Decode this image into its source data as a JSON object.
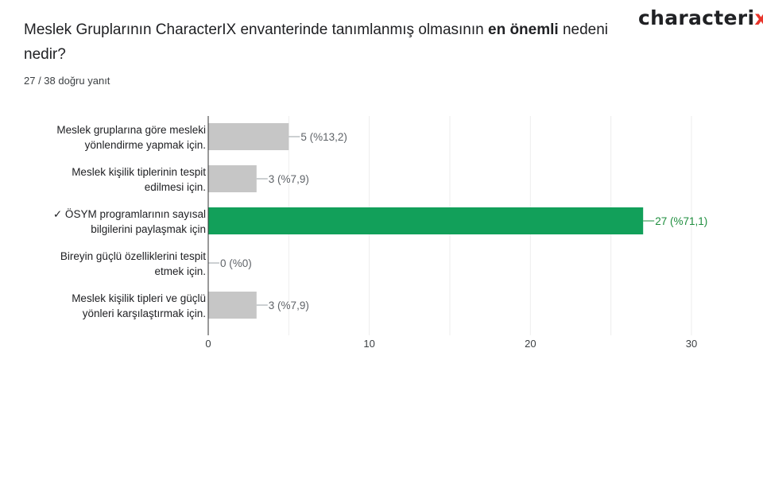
{
  "question": {
    "text_before": "Meslek Gruplarının CharacterIX envanterinde tanımlanmış olmasının ",
    "text_bold": "en önemli",
    "text_after": " nedeni nedir?"
  },
  "score_text": "27 / 38 doğru yanıt",
  "logo": {
    "main": "characteri",
    "accent": "x",
    "close": ")",
    "accent_color": "#e8352b"
  },
  "chart_data": {
    "type": "bar",
    "orientation": "horizontal",
    "categories": [
      [
        "Meslek gruplarına göre mesleki",
        "yönlendirme yapmak için."
      ],
      [
        "Meslek kişilik tiplerinin tespit",
        "edilmesi için."
      ],
      [
        "✓ ÖSYM programlarının sayısal",
        "bilgilerini paylaşmak için"
      ],
      [
        "Bireyin güçlü özelliklerini tespit",
        "etmek için."
      ],
      [
        "Meslek kişilik tipleri ve güçlü",
        "yönleri karşılaştırmak için."
      ]
    ],
    "values": [
      5,
      3,
      27,
      0,
      3
    ],
    "value_labels": [
      "5 (%13,2)",
      "3 (%7,9)",
      "27 (%71,1)",
      "0 (%0)",
      "3 (%7,9)"
    ],
    "correct": [
      false,
      false,
      true,
      false,
      false
    ],
    "xlim": [
      0,
      30
    ],
    "x_ticks": [
      0,
      10,
      20,
      30
    ],
    "x_tick_labels": [
      "0",
      "10",
      "20",
      "30"
    ],
    "grid": true,
    "colors": {
      "bar": "#c6c6c6",
      "correct_bar": "#12a05a",
      "correct_text": "#1e8e3e",
      "grid": "#eeeeee",
      "axis": "#333333"
    }
  }
}
